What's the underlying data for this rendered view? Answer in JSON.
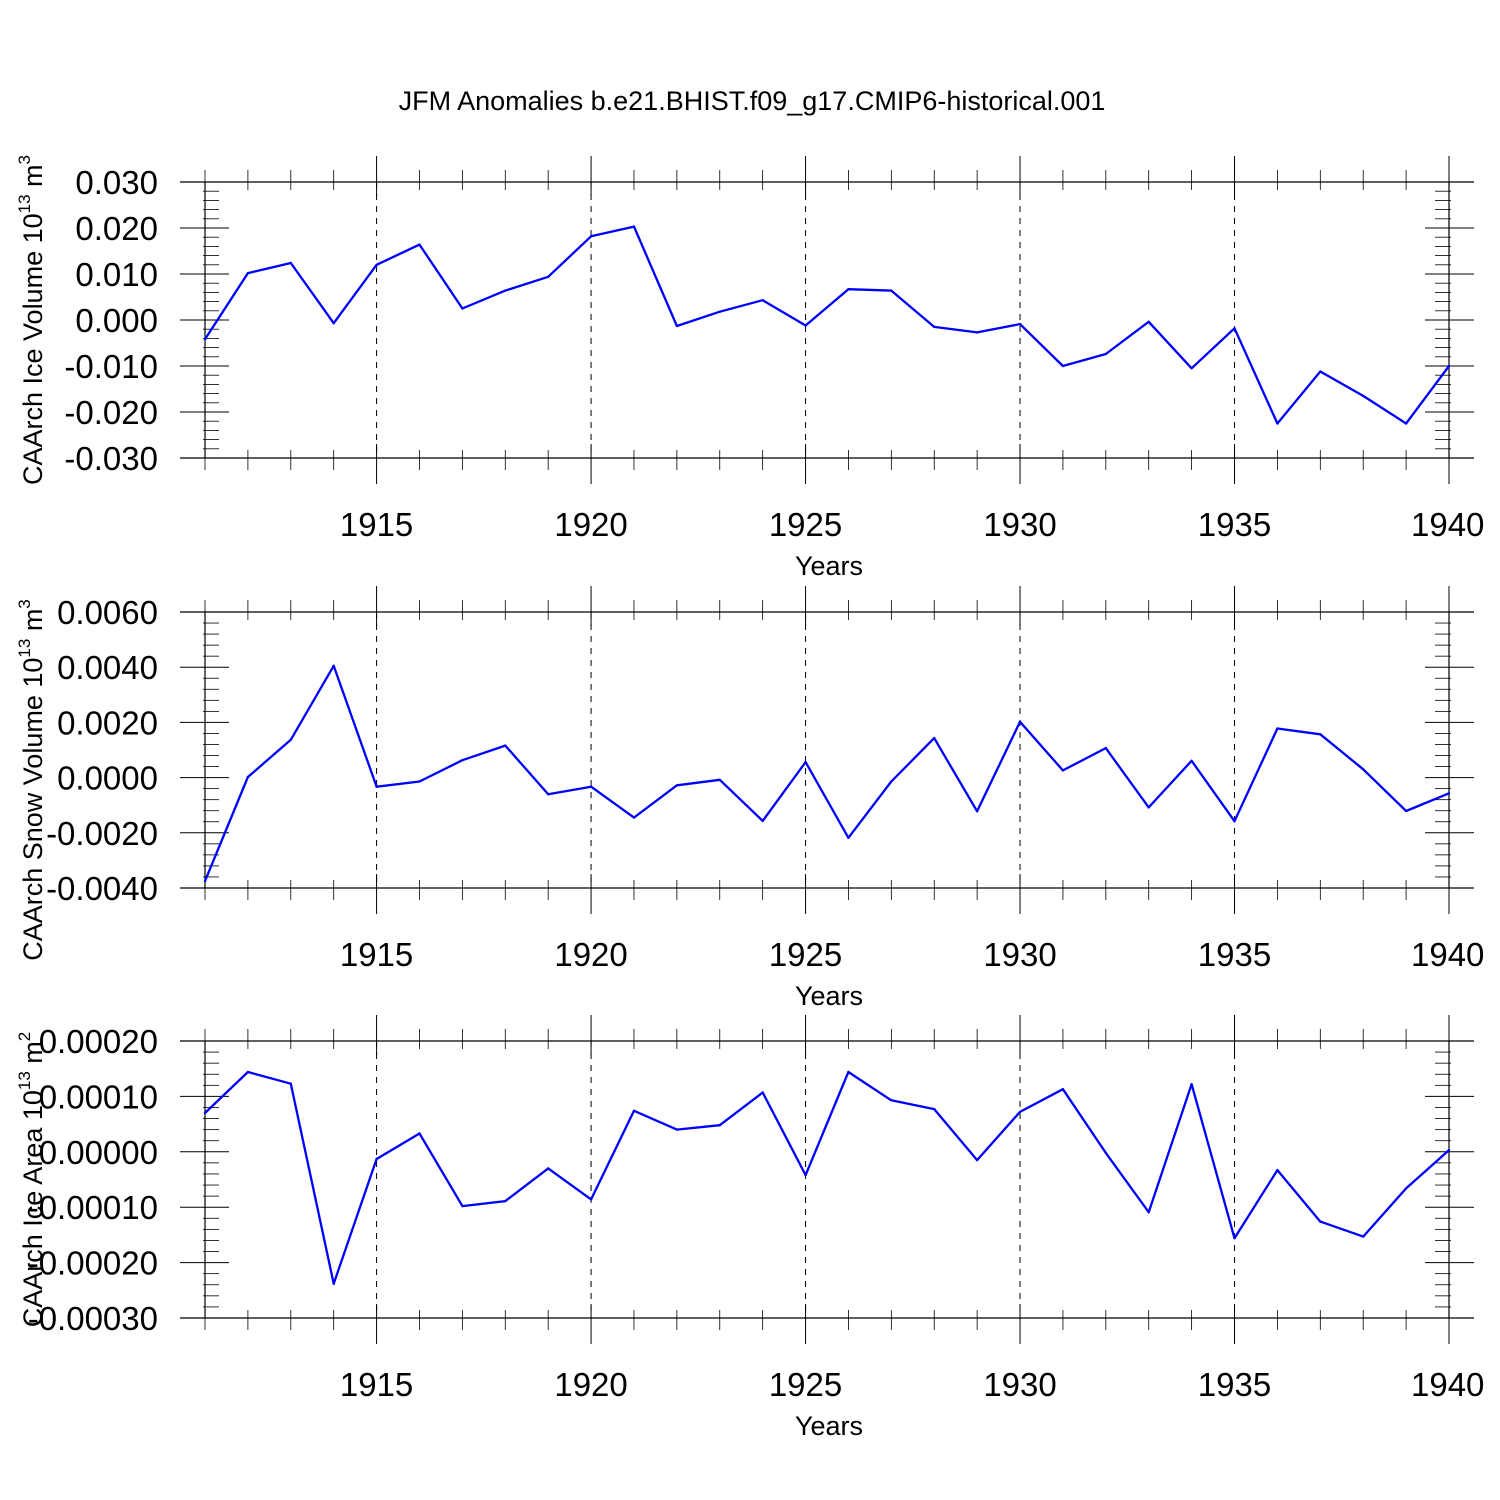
{
  "title": "JFM Anomalies b.e21.BHIST.f09_g17.CMIP6-historical.001",
  "chart_data": [
    {
      "type": "line",
      "xlabel": "Years",
      "ylabel": "CAArch Ice Volume 10",
      "ylabel_exp": "13",
      "ylabel_unit": "m",
      "ylabel_unit_exp": "3",
      "xlim": [
        1911,
        1940
      ],
      "ylim": [
        -0.03,
        0.03
      ],
      "xticks": [
        1915,
        1920,
        1925,
        1930,
        1935,
        1940
      ],
      "yticks": [
        -0.03,
        -0.02,
        -0.01,
        0.0,
        0.01,
        0.02,
        0.03
      ],
      "ytick_labels": [
        "-0.030",
        "-0.020",
        "-0.010",
        "0.000",
        "0.010",
        "0.020",
        "0.030"
      ],
      "line_color": "#0000ff",
      "x": [
        1911,
        1912,
        1913,
        1914,
        1915,
        1916,
        1917,
        1918,
        1919,
        1920,
        1921,
        1922,
        1923,
        1924,
        1925,
        1926,
        1927,
        1928,
        1929,
        1930,
        1931,
        1932,
        1933,
        1934,
        1935,
        1936,
        1937,
        1938,
        1939,
        1940
      ],
      "values": [
        -0.0042,
        0.0102,
        0.0124,
        -0.0007,
        0.012,
        0.0164,
        0.0025,
        0.0064,
        0.0094,
        0.0182,
        0.0203,
        -0.0013,
        0.0018,
        0.0043,
        -0.0012,
        0.0067,
        0.0064,
        -0.0015,
        -0.0027,
        -0.0009,
        -0.01,
        -0.0074,
        -0.0004,
        -0.0105,
        -0.0018,
        -0.0225,
        -0.0112,
        -0.0165,
        -0.0225,
        -0.01
      ]
    },
    {
      "type": "line",
      "xlabel": "Years",
      "ylabel": "CAArch Snow Volume 10",
      "ylabel_exp": "13",
      "ylabel_unit": "m",
      "ylabel_unit_exp": "3",
      "xlim": [
        1911,
        1940
      ],
      "ylim": [
        -0.004,
        0.006
      ],
      "xticks": [
        1915,
        1920,
        1925,
        1930,
        1935,
        1940
      ],
      "yticks": [
        -0.004,
        -0.002,
        0.0,
        0.002,
        0.004,
        0.006
      ],
      "ytick_labels": [
        "-0.0040",
        "-0.0020",
        "0.0000",
        "0.0020",
        "0.0040",
        "0.0060"
      ],
      "line_color": "#0000ff",
      "x": [
        1911,
        1912,
        1913,
        1914,
        1915,
        1916,
        1917,
        1918,
        1919,
        1920,
        1921,
        1922,
        1923,
        1924,
        1925,
        1926,
        1927,
        1928,
        1929,
        1930,
        1931,
        1932,
        1933,
        1934,
        1935,
        1936,
        1937,
        1938,
        1939,
        1940
      ],
      "values": [
        -0.00375,
        2e-05,
        0.00137,
        0.00405,
        -0.00033,
        -0.00014,
        0.00063,
        0.00116,
        -0.0006,
        -0.00033,
        -0.00145,
        -0.00028,
        -8e-05,
        -0.00157,
        0.00056,
        -0.00218,
        -0.00014,
        0.00143,
        -0.00122,
        0.00202,
        0.00026,
        0.00107,
        -0.00108,
        0.00061,
        -0.00158,
        0.00178,
        0.00157,
        0.0003,
        -0.00121,
        -0.00057
      ]
    },
    {
      "type": "line",
      "xlabel": "Years",
      "ylabel": "CAArch Ice Area 10",
      "ylabel_exp": "13",
      "ylabel_unit": "m",
      "ylabel_unit_exp": "2",
      "xlim": [
        1911,
        1940
      ],
      "ylim": [
        -0.0003,
        0.0002
      ],
      "xticks": [
        1915,
        1920,
        1925,
        1930,
        1935,
        1940
      ],
      "yticks": [
        -0.0003,
        -0.0002,
        -0.0001,
        0.0,
        0.0001,
        0.0002
      ],
      "ytick_labels": [
        "-0.00030",
        "-0.00020",
        "-0.00010",
        "0.00000",
        "0.00010",
        "0.00020"
      ],
      "line_color": "#0000ff",
      "x": [
        1911,
        1912,
        1913,
        1914,
        1915,
        1916,
        1917,
        1918,
        1919,
        1920,
        1921,
        1922,
        1923,
        1924,
        1925,
        1926,
        1927,
        1928,
        1929,
        1930,
        1931,
        1932,
        1933,
        1934,
        1935,
        1936,
        1937,
        1938,
        1939,
        1940
      ],
      "values": [
        7e-05,
        0.000144,
        0.000123,
        -0.000238,
        -1.3e-05,
        3.3e-05,
        -9.8e-05,
        -8.9e-05,
        -3e-05,
        -8.6e-05,
        7.4e-05,
        4e-05,
        4.8e-05,
        0.000107,
        -4.2e-05,
        0.000144,
        9.3e-05,
        7.7e-05,
        -1.5e-05,
        7.2e-05,
        0.000113,
        -2e-06,
        -0.000109,
        0.000122,
        -0.000156,
        -3.3e-05,
        -0.000126,
        -0.000153,
        -6.6e-05,
        3e-06
      ]
    }
  ]
}
